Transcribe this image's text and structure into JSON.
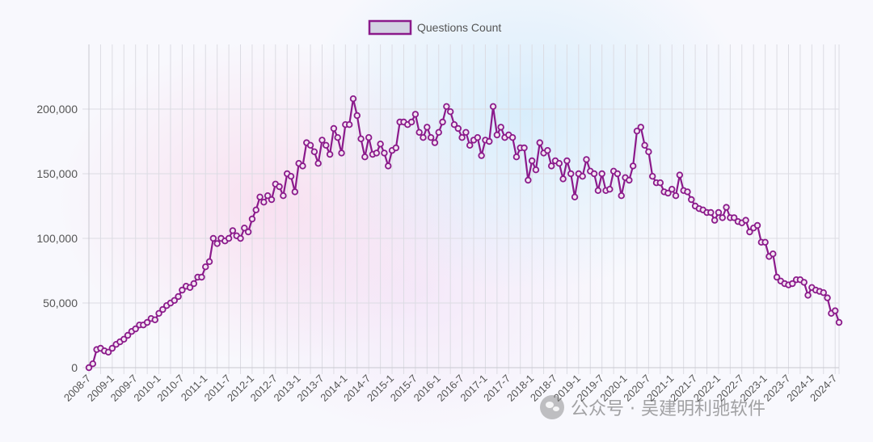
{
  "legend": {
    "label": "Questions Count",
    "swatch_fill": "#d3d3e3",
    "swatch_border": "#8b1a8b"
  },
  "watermark": {
    "text": "公众号 · 吴建明利驰软件"
  },
  "colors": {
    "line": "#8b1a8b",
    "grid": "#dcdce3",
    "text": "#555555"
  },
  "chart_data": {
    "type": "line",
    "series": [
      {
        "name": "Questions Count",
        "start": "2008-7",
        "interval_months": 1,
        "values": [
          0,
          3000,
          14000,
          15000,
          13000,
          12000,
          15000,
          18000,
          20000,
          22000,
          25000,
          28000,
          30000,
          33000,
          33000,
          35000,
          38000,
          37000,
          42000,
          45000,
          48000,
          50000,
          52000,
          55000,
          60000,
          63000,
          62000,
          65000,
          70000,
          70000,
          78000,
          82000,
          100000,
          96000,
          100000,
          98000,
          100000,
          106000,
          102000,
          100000,
          108000,
          105000,
          115000,
          122000,
          132000,
          128000,
          133000,
          130000,
          142000,
          140000,
          133000,
          150000,
          148000,
          136000,
          158000,
          156000,
          174000,
          172000,
          167000,
          158000,
          176000,
          172000,
          165000,
          185000,
          178000,
          166000,
          188000,
          188000,
          208000,
          195000,
          177000,
          163000,
          178000,
          165000,
          166000,
          173000,
          166000,
          156000,
          168000,
          170000,
          190000,
          190000,
          188000,
          190000,
          196000,
          182000,
          178000,
          186000,
          178000,
          174000,
          182000,
          190000,
          202000,
          198000,
          188000,
          185000,
          178000,
          182000,
          172000,
          176000,
          178000,
          164000,
          176000,
          175000,
          202000,
          180000,
          186000,
          178000,
          180000,
          178000,
          163000,
          170000,
          170000,
          145000,
          160000,
          153000,
          174000,
          166000,
          168000,
          156000,
          160000,
          158000,
          146000,
          160000,
          150000,
          132000,
          150000,
          148000,
          161000,
          152000,
          150000,
          137000,
          150000,
          137000,
          138000,
          152000,
          150000,
          133000,
          147000,
          145000,
          156000,
          183000,
          186000,
          172000,
          167000,
          148000,
          143000,
          143000,
          136000,
          135000,
          138000,
          133000,
          149000,
          137000,
          136000,
          130000,
          125000,
          123000,
          122000,
          120000,
          120000,
          114000,
          120000,
          116000,
          124000,
          116000,
          116000,
          113000,
          112000,
          114000,
          105000,
          108000,
          110000,
          97000,
          97000,
          86000,
          88000,
          70000,
          67000,
          65000,
          64000,
          65000,
          68000,
          68000,
          66000,
          56000,
          62000,
          60000,
          59000,
          58000,
          54000,
          42000,
          44000,
          35000
        ]
      }
    ],
    "x_tick_labels": [
      "2008-7",
      "2009-1",
      "2009-7",
      "2010-1",
      "2010-7",
      "2011-1",
      "2011-7",
      "2012-1",
      "2012-7",
      "2013-1",
      "2013-7",
      "2014-1",
      "2014-7",
      "2015-1",
      "2015-7",
      "2016-1",
      "2016-7",
      "2017-1",
      "2017-7",
      "2018-1",
      "2018-7",
      "2019-1",
      "2019-7",
      "2020-1",
      "2020-7",
      "2021-1",
      "2021-7",
      "2022-1",
      "2022-7",
      "2023-1",
      "2023-7",
      "2024-1",
      "2024-7"
    ],
    "y_tick_labels": [
      "0",
      "50,000",
      "100,000",
      "150,000",
      "200,000"
    ],
    "ylim": [
      0,
      250000
    ],
    "yticks": [
      0,
      50000,
      100000,
      150000,
      200000
    ],
    "grid": true,
    "legend_position": "top-center",
    "title": "",
    "xlabel": "",
    "ylabel": ""
  }
}
